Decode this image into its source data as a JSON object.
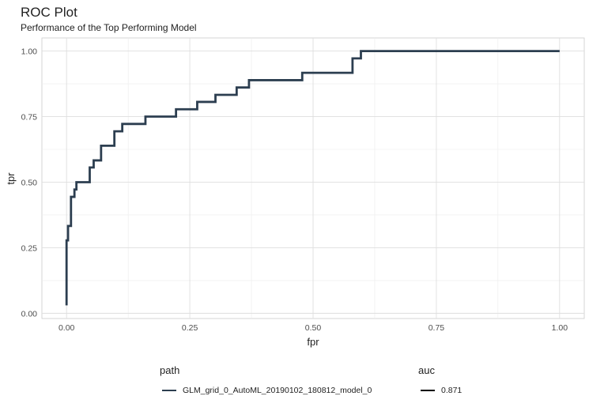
{
  "chart_data": {
    "type": "line",
    "title": "ROC Plot",
    "subtitle": "Performance of the Top Performing Model",
    "xlabel": "fpr",
    "ylabel": "tpr",
    "xlim": [
      -0.05,
      1.05
    ],
    "ylim": [
      -0.02,
      1.05
    ],
    "x_ticks": [
      0.0,
      0.25,
      0.5,
      0.75,
      1.0
    ],
    "x_tick_labels": [
      "0.00",
      "0.25",
      "0.50",
      "0.75",
      "1.00"
    ],
    "y_ticks": [
      0.0,
      0.25,
      0.5,
      0.75,
      1.0
    ],
    "y_tick_labels": [
      "0.00",
      "0.25",
      "0.50",
      "0.75",
      "1.00"
    ],
    "grid": true,
    "legend_position": "bottom",
    "series": [
      {
        "name": "GLM_grid_0_AutoML_20190102_180812_model_0",
        "color": "#2c3e50",
        "x": [
          0.0,
          0.0,
          0.003,
          0.003,
          0.009,
          0.009,
          0.016,
          0.016,
          0.02,
          0.02,
          0.03,
          0.03,
          0.047,
          0.047,
          0.055,
          0.055,
          0.07,
          0.07,
          0.097,
          0.097,
          0.113,
          0.113,
          0.16,
          0.16,
          0.222,
          0.222,
          0.265,
          0.265,
          0.302,
          0.302,
          0.345,
          0.345,
          0.37,
          0.37,
          0.478,
          0.478,
          0.58,
          0.58,
          0.597,
          0.597,
          1.0
        ],
        "y": [
          0.03,
          0.278,
          0.278,
          0.333,
          0.333,
          0.444,
          0.444,
          0.472,
          0.472,
          0.5,
          0.5,
          0.5,
          0.5,
          0.556,
          0.556,
          0.583,
          0.583,
          0.639,
          0.639,
          0.694,
          0.694,
          0.722,
          0.722,
          0.75,
          0.75,
          0.778,
          0.778,
          0.806,
          0.806,
          0.833,
          0.833,
          0.861,
          0.861,
          0.889,
          0.889,
          0.917,
          0.917,
          0.972,
          0.972,
          1.0,
          1.0
        ]
      }
    ],
    "legend": {
      "path_title": "path",
      "path_label": "GLM_grid_0_AutoML_20190102_180812_model_0",
      "auc_title": "auc",
      "auc_label": "0.871",
      "auc_color": "#000000"
    }
  }
}
